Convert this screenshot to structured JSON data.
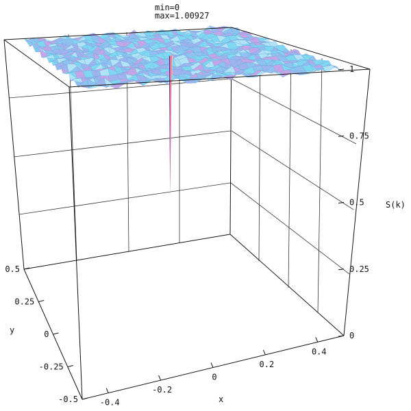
{
  "chart_data": {
    "type": "surface3d",
    "annotations": [
      "min=0",
      "max=1.00927"
    ],
    "zlabel": "S(k)",
    "xlabel": "x",
    "ylabel": "y",
    "xlim": [
      -0.5,
      0.5
    ],
    "ylim": [
      -0.5,
      0.5
    ],
    "zlim": [
      0,
      1
    ],
    "x_ticks": [
      "-0.4",
      "-0.2",
      "0",
      "0.2",
      "0.4"
    ],
    "y_ticks": [
      "0.5",
      "0.25",
      "0",
      "-0.25",
      "-0.5"
    ],
    "z_ticks": [
      "0",
      "0.25",
      "0.5",
      "0.75",
      "1"
    ],
    "surface": {
      "plateau_value": 1.0,
      "dip": {
        "x": 0,
        "y": 0,
        "value": 0
      },
      "colors": [
        "#7fd7f2",
        "#9fb4ee",
        "#b0e4f6",
        "#8fc2f0",
        "#c4a6e8"
      ]
    }
  }
}
